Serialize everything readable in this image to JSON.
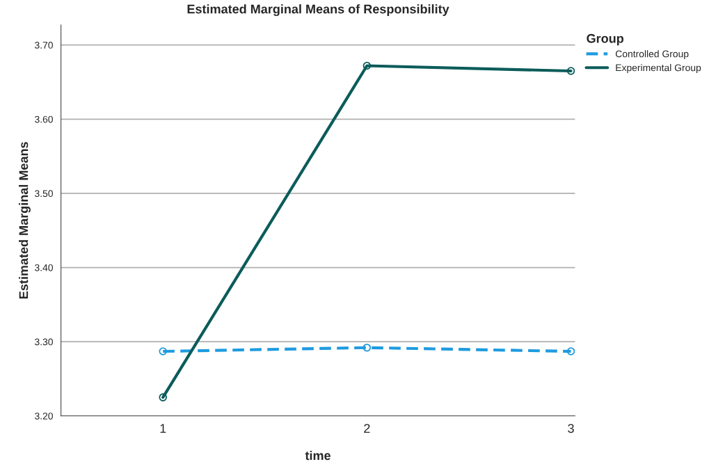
{
  "chart_data": {
    "type": "line",
    "title": "Estimated Marginal Means of Responsibility",
    "xlabel": "time",
    "ylabel": "Estimated Marginal Means",
    "legend_title": "Group",
    "categories": [
      "1",
      "2",
      "3"
    ],
    "series": [
      {
        "name": "Controlled Group",
        "color": "#1e9be0",
        "values": [
          3.287,
          3.292,
          3.287
        ],
        "line_style": "dashed"
      },
      {
        "name": "Experimental Group",
        "color": "#0b5c5a",
        "values": [
          3.225,
          3.672,
          3.665
        ],
        "line_style": "solid"
      }
    ],
    "ylim": [
      3.2,
      3.727
    ],
    "yticks": [
      {
        "value": 3.2,
        "label": "3.20"
      },
      {
        "value": 3.3,
        "label": "3.30"
      },
      {
        "value": 3.4,
        "label": "3.40"
      },
      {
        "value": 3.5,
        "label": "3.50"
      },
      {
        "value": 3.6,
        "label": "3.60"
      },
      {
        "value": 3.7,
        "label": "3.70"
      }
    ],
    "grid": "y",
    "legend": "top right",
    "marker": "circle"
  }
}
